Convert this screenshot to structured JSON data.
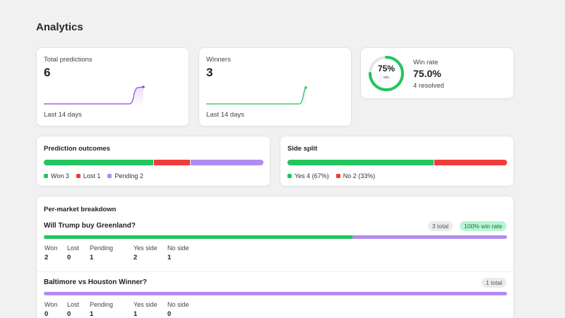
{
  "page": {
    "title": "Analytics"
  },
  "colors": {
    "won": "#22c55e",
    "lost": "#ef3b3b",
    "pending": "#b18cf0",
    "ring_track": "#e6e6e6",
    "sparkline_purple": "#8b4fd6",
    "sparkline_green": "#22c55e"
  },
  "cards": {
    "total": {
      "label": "Total predictions",
      "value": "6",
      "footer": "Last 14 days"
    },
    "winners": {
      "label": "Winners",
      "value": "3",
      "footer": "Last 14 days"
    },
    "winrate": {
      "ring_pct": "75%",
      "ring_sub": "win",
      "label": "Win rate",
      "value": "75.0%",
      "sub": "4 resolved",
      "ring_fraction": 0.75
    }
  },
  "outcomes": {
    "title": "Prediction outcomes",
    "segments": [
      {
        "key": "won",
        "count": 3
      },
      {
        "key": "lost",
        "count": 1
      },
      {
        "key": "pending",
        "count": 2
      }
    ],
    "legend": [
      {
        "text": "Won 3",
        "color": "#22c55e"
      },
      {
        "text": "Lost 1",
        "color": "#ef3b3b"
      },
      {
        "text": "Pending 2",
        "color": "#b18cf0"
      }
    ]
  },
  "side_split": {
    "title": "Side split",
    "segments": [
      {
        "key": "yes",
        "count": 4
      },
      {
        "key": "no",
        "count": 2
      }
    ],
    "legend": [
      {
        "text": "Yes 4 (67%)",
        "color": "#22c55e"
      },
      {
        "text": "No 2 (33%)",
        "color": "#ef3b3b"
      }
    ]
  },
  "breakdown": {
    "title": "Per-market breakdown",
    "stat_labels": [
      "Won",
      "Lost",
      "Pending",
      "Yes side",
      "No side"
    ],
    "markets": [
      {
        "title": "Will Trump buy Greenland?",
        "total_badge": "3 total",
        "rate_badge": "100% win rate",
        "stats": [
          "2",
          "0",
          "1",
          "2",
          "1"
        ],
        "won": 2,
        "lost": 0,
        "pending": 1
      },
      {
        "title": "Baltimore vs Houston Winner?",
        "total_badge": "1 total",
        "rate_badge": "",
        "stats": [
          "0",
          "0",
          "1",
          "1",
          "0"
        ],
        "won": 0,
        "lost": 0,
        "pending": 1
      }
    ]
  }
}
